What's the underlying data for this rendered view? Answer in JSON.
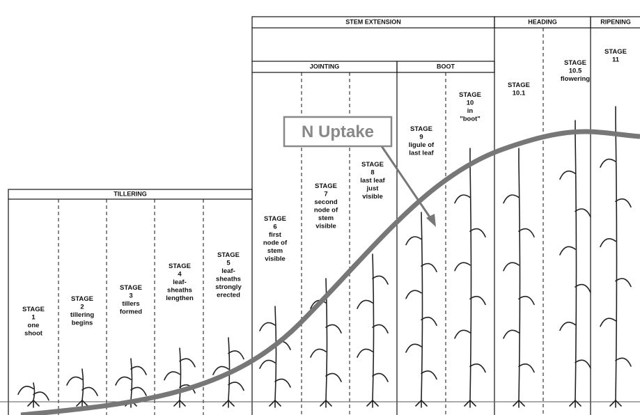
{
  "headers": {
    "tillering": "TILLERING",
    "stem_extension": "STEM EXTENSION",
    "jointing": "JOINTING",
    "boot": "BOOT",
    "heading": "HEADING",
    "ripening": "RIPENING"
  },
  "label": "N Uptake",
  "stages": [
    {
      "lines": [
        "STAGE",
        "1",
        "one",
        "shoot"
      ]
    },
    {
      "lines": [
        "STAGE",
        "2",
        "tillering",
        "begins"
      ]
    },
    {
      "lines": [
        "STAGE",
        "3",
        "tillers",
        "formed"
      ]
    },
    {
      "lines": [
        "STAGE",
        "4",
        "leaf-",
        "sheaths",
        "lengthen"
      ]
    },
    {
      "lines": [
        "STAGE",
        "5",
        "leaf-",
        "sheaths",
        "strongly",
        "erected"
      ]
    },
    {
      "lines": [
        "STAGE",
        "6",
        "first",
        "node of",
        "stem",
        "visible"
      ]
    },
    {
      "lines": [
        "STAGE",
        "7",
        "second",
        "node of",
        "stem",
        "visible"
      ]
    },
    {
      "lines": [
        "STAGE",
        "8",
        "last leaf",
        "just",
        "visible"
      ]
    },
    {
      "lines": [
        "STAGE",
        "9",
        "ligule of",
        "last leaf"
      ]
    },
    {
      "lines": [
        "STAGE",
        "10",
        "in",
        "\"boot\""
      ]
    },
    {
      "lines": [
        "STAGE",
        "10.1"
      ]
    },
    {
      "lines": [
        "STAGE",
        "10.5",
        "flowering"
      ]
    },
    {
      "lines": [
        "STAGE",
        "11"
      ]
    }
  ]
}
